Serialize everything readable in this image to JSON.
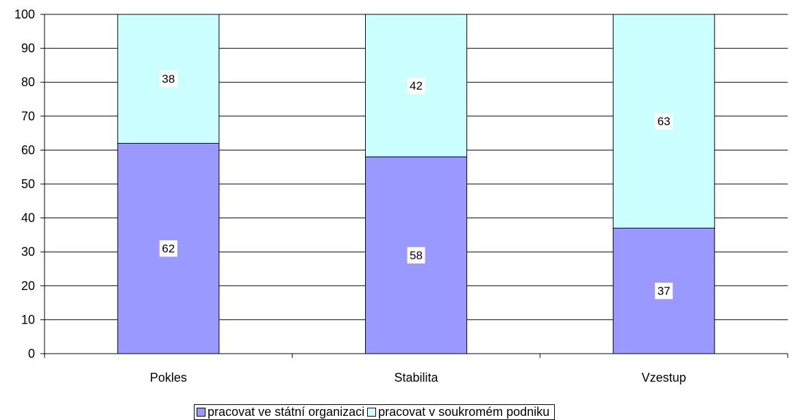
{
  "chart_data": {
    "type": "bar",
    "stacked": true,
    "categories": [
      "Pokles",
      "Stabilita",
      "Vzestup"
    ],
    "series": [
      {
        "name": "pracovat ve státní organizaci",
        "values": [
          62,
          58,
          37
        ],
        "color": "#9999ff"
      },
      {
        "name": "pracovat v soukromém podniku",
        "values": [
          38,
          42,
          63
        ],
        "color": "#ccffff"
      }
    ],
    "ylim": [
      0,
      100
    ],
    "yticks": [
      "0",
      "10",
      "20",
      "30",
      "40",
      "50",
      "60",
      "70",
      "80",
      "90",
      "100"
    ],
    "grid": true,
    "legend_position": "bottom",
    "title": "",
    "xlabel": "",
    "ylabel": ""
  }
}
